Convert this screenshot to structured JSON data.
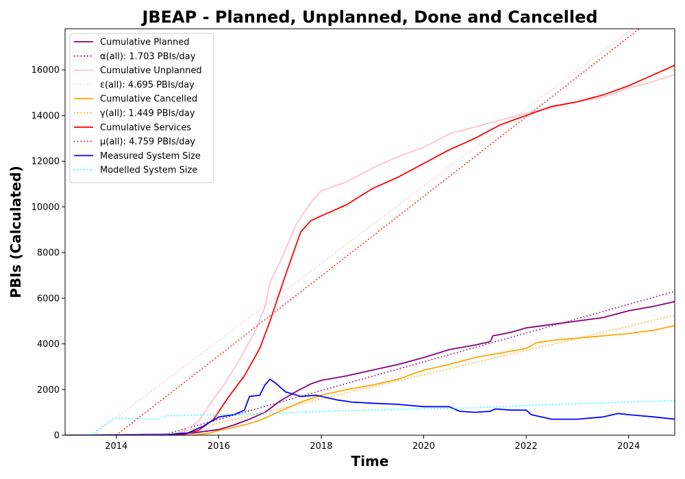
{
  "chart_data": {
    "type": "line",
    "title": "JBEAP - Planned, Unplanned, Done  and Cancelled",
    "xlabel": "Time",
    "ylabel": "PBIs (Calculated)",
    "xlim": [
      2013.0,
      2024.9
    ],
    "ylim": [
      0,
      17800
    ],
    "xticks": [
      2014,
      2016,
      2018,
      2020,
      2022,
      2024
    ],
    "yticks": [
      0,
      2000,
      4000,
      6000,
      8000,
      10000,
      12000,
      14000,
      16000
    ],
    "grid": false,
    "legend_position": "top-left",
    "series": [
      {
        "name": "Cumulative Planned",
        "style": "solid",
        "color": "#800080",
        "x": [
          2013.0,
          2014.0,
          2014.5,
          2015.0,
          2015.5,
          2016.0,
          2016.3,
          2016.6,
          2016.9,
          2017.2,
          2017.5,
          2017.8,
          2018.0,
          2018.5,
          2019.0,
          2019.5,
          2020.0,
          2020.5,
          2021.0,
          2021.3,
          2021.35,
          2021.7,
          2022.0,
          2022.5,
          2023.0,
          2023.5,
          2024.0,
          2024.5,
          2024.9
        ],
        "y": [
          0,
          10,
          40,
          60,
          100,
          250,
          450,
          700,
          1000,
          1500,
          1900,
          2250,
          2400,
          2600,
          2850,
          3100,
          3400,
          3750,
          3950,
          4100,
          4350,
          4500,
          4700,
          4850,
          5000,
          5150,
          5450,
          5650,
          5850
        ]
      },
      {
        "name": "α(all): 1.703 PBIs/day",
        "style": "dotted",
        "color": "#800080",
        "x": [
          2014.9,
          2024.9
        ],
        "y": [
          0,
          6300
        ]
      },
      {
        "name": "Cumulative Unplanned",
        "style": "solid",
        "color": "#ffc0cb",
        "x": [
          2013.0,
          2015.0,
          2015.3,
          2015.6,
          2015.9,
          2016.1,
          2016.4,
          2016.7,
          2016.9,
          2017.0,
          2017.2,
          2017.5,
          2017.8,
          2018.0,
          2018.5,
          2019.0,
          2019.5,
          2020.0,
          2020.5,
          2021.0,
          2021.5,
          2022.0,
          2022.5,
          2023.0,
          2023.5,
          2024.0,
          2024.5,
          2024.9
        ],
        "y": [
          0,
          50,
          150,
          600,
          1600,
          2200,
          3300,
          4500,
          5600,
          6700,
          7600,
          9200,
          10200,
          10700,
          11100,
          11700,
          12200,
          12600,
          13200,
          13500,
          13800,
          14100,
          14350,
          14600,
          14800,
          15200,
          15500,
          15800
        ]
      },
      {
        "name": "ε(all): 4.695 PBIs/day",
        "style": "dotted",
        "color": "#ffc0cb",
        "x": [
          2013.55,
          2024.9
        ],
        "y": [
          0,
          19200
        ]
      },
      {
        "name": "Cumulative Cancelled",
        "style": "solid",
        "color": "#ffa500",
        "x": [
          2013.0,
          2015.5,
          2015.8,
          2016.0,
          2016.5,
          2016.8,
          2017.0,
          2017.3,
          2017.6,
          2018.0,
          2018.5,
          2019.0,
          2019.5,
          2020.0,
          2020.5,
          2021.0,
          2021.5,
          2022.0,
          2022.2,
          2022.5,
          2023.0,
          2023.5,
          2024.0,
          2024.5,
          2024.9
        ],
        "y": [
          0,
          10,
          80,
          200,
          450,
          650,
          850,
          1150,
          1450,
          1750,
          2000,
          2200,
          2450,
          2850,
          3100,
          3400,
          3600,
          3800,
          4050,
          4150,
          4250,
          4350,
          4450,
          4600,
          4800
        ]
      },
      {
        "name": "γ(all): 1.449 PBIs/day",
        "style": "dotted",
        "color": "#ffa500",
        "x": [
          2015.0,
          2024.9
        ],
        "y": [
          0,
          5250
        ]
      },
      {
        "name": "Cumulative Services",
        "style": "solid",
        "color": "#ff0000",
        "x": [
          2013.0,
          2015.3,
          2015.6,
          2015.9,
          2016.2,
          2016.5,
          2016.8,
          2017.0,
          2017.3,
          2017.6,
          2017.8,
          2018.0,
          2018.5,
          2019.0,
          2019.5,
          2020.0,
          2020.5,
          2021.0,
          2021.5,
          2022.0,
          2022.5,
          2023.0,
          2023.5,
          2024.0,
          2024.5,
          2024.9
        ],
        "y": [
          0,
          20,
          200,
          700,
          1700,
          2600,
          3800,
          5000,
          7000,
          8900,
          9400,
          9600,
          10100,
          10800,
          11300,
          11900,
          12500,
          13000,
          13600,
          14000,
          14400,
          14600,
          14900,
          15300,
          15800,
          16200
        ]
      },
      {
        "name": "μ(all): 4.759 PBIs/day",
        "style": "dotted",
        "color": "#ff0000",
        "x": [
          2014.0,
          2024.9
        ],
        "y": [
          0,
          19000
        ]
      },
      {
        "name": "Measured System Size",
        "style": "solid",
        "color": "#0000ff",
        "x": [
          2013.0,
          2015.0,
          2015.4,
          2015.7,
          2016.0,
          2016.3,
          2016.5,
          2016.6,
          2016.8,
          2016.9,
          2017.0,
          2017.1,
          2017.3,
          2017.6,
          2017.9,
          2018.0,
          2018.3,
          2018.6,
          2019.0,
          2019.5,
          2020.0,
          2020.5,
          2020.7,
          2021.0,
          2021.3,
          2021.4,
          2021.7,
          2022.0,
          2022.1,
          2022.5,
          2023.0,
          2023.5,
          2023.8,
          2024.0,
          2024.5,
          2024.9
        ],
        "y": [
          0,
          20,
          100,
          400,
          800,
          900,
          1100,
          1700,
          1750,
          2200,
          2450,
          2300,
          1900,
          1700,
          1750,
          1700,
          1550,
          1450,
          1400,
          1350,
          1250,
          1250,
          1050,
          1000,
          1050,
          1150,
          1100,
          1100,
          900,
          700,
          700,
          800,
          950,
          900,
          800,
          700
        ]
      },
      {
        "name": "Modelled System Size",
        "style": "dotted",
        "color": "#00ffff",
        "x": [
          2013.0,
          2013.5,
          2013.95,
          2014.5,
          2014.8,
          2015.0,
          2016.0,
          2017.0,
          2018.0,
          2019.0,
          2020.0,
          2021.0,
          2022.0,
          2023.0,
          2024.0,
          2024.9
        ],
        "y": [
          0,
          0,
          750,
          720,
          720,
          850,
          900,
          950,
          1050,
          1100,
          1150,
          1200,
          1300,
          1380,
          1450,
          1520
        ]
      }
    ]
  }
}
